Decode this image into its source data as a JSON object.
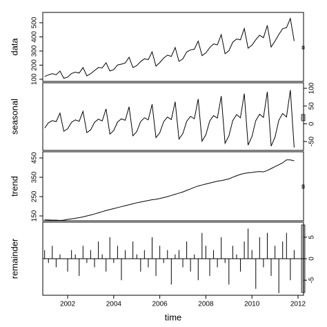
{
  "chart_data": {
    "type": "line",
    "xlabel": "time",
    "x": [
      2001,
      2001.167,
      2001.333,
      2001.5,
      2001.667,
      2001.833,
      2002,
      2002.167,
      2002.333,
      2002.5,
      2002.667,
      2002.833,
      2003,
      2003.167,
      2003.333,
      2003.5,
      2003.667,
      2003.833,
      2004,
      2004.167,
      2004.333,
      2004.5,
      2004.667,
      2004.833,
      2005,
      2005.167,
      2005.333,
      2005.5,
      2005.667,
      2005.833,
      2006,
      2006.167,
      2006.333,
      2006.5,
      2006.667,
      2006.833,
      2007,
      2007.167,
      2007.333,
      2007.5,
      2007.667,
      2007.833,
      2008,
      2008.167,
      2008.333,
      2008.5,
      2008.667,
      2008.833,
      2009,
      2009.167,
      2009.333,
      2009.5,
      2009.667,
      2009.833,
      2010,
      2010.167,
      2010.333,
      2010.5,
      2010.667,
      2010.833,
      2011,
      2011.167,
      2011.333,
      2011.5,
      2011.667,
      2011.833
    ],
    "xlim": [
      2000.92,
      2012.24
    ],
    "xticks": [
      2002,
      2004,
      2006,
      2008,
      2010,
      2012
    ],
    "panels": [
      {
        "type": "line",
        "ylabel": "data",
        "axis": "left",
        "ylim": [
          85,
          573
        ],
        "yticks": [
          100,
          200,
          300,
          400,
          500
        ],
        "values": [
          120,
          131,
          140,
          132,
          158,
          107,
          115,
          141,
          150,
          144,
          183,
          124,
          140,
          162,
          183,
          181,
          217,
          159,
          168,
          201,
          207,
          215,
          256,
          183,
          197,
          225,
          245,
          239,
          294,
          193,
          218,
          250,
          271,
          262,
          325,
          227,
          244,
          293,
          308,
          313,
          370,
          267,
          287,
          324,
          350,
          344,
          416,
          281,
          302,
          362,
          385,
          379,
          459,
          320,
          341,
          380,
          412,
          394,
          481,
          328,
          370,
          417,
          458,
          465,
          530,
          370
        ]
      },
      {
        "type": "line",
        "ylabel": "seasonal",
        "axis": "right",
        "ylim": [
          -75,
          115.6
        ],
        "yticks": [
          -50,
          0,
          50,
          100
        ],
        "values": [
          -12,
          3,
          9,
          6,
          30,
          -21,
          -14,
          4,
          11,
          7,
          35,
          -25,
          -17,
          4,
          13,
          8,
          42,
          -29,
          -19,
          5,
          14,
          10,
          48,
          -34,
          -22,
          6,
          17,
          11,
          55,
          -39,
          -25,
          6,
          19,
          12,
          62,
          -43,
          -28,
          7,
          21,
          14,
          70,
          -49,
          -31,
          8,
          23,
          16,
          78,
          -55,
          -34,
          9,
          26,
          17,
          85,
          -60,
          -36,
          9,
          27,
          18,
          90,
          -63,
          -38,
          10,
          29,
          19,
          95,
          -67
        ]
      },
      {
        "type": "line",
        "ylabel": "trend",
        "axis": "left",
        "ylim": [
          125,
          482
        ],
        "yticks": [
          150,
          250,
          350,
          450
        ],
        "values": [
          130,
          129,
          128,
          128,
          127,
          128,
          132,
          135,
          138,
          141,
          145,
          150,
          155,
          160,
          166,
          172,
          178,
          183,
          188,
          193,
          198,
          203,
          208,
          213,
          218,
          222,
          226,
          230,
          234,
          236,
          240,
          245,
          250,
          256,
          262,
          268,
          274,
          282,
          290,
          298,
          305,
          310,
          315,
          320,
          325,
          330,
          333,
          337,
          342,
          350,
          358,
          365,
          370,
          373,
          375,
          378,
          380,
          378,
          385,
          395,
          405,
          415,
          425,
          440,
          440,
          435
        ]
      },
      {
        "type": "bar",
        "ylabel": "remainder",
        "axis": "right",
        "ylim": [
          -8.5,
          8.5
        ],
        "yticks": [
          -5,
          0,
          5
        ],
        "values": [
          2,
          -1,
          3,
          -2,
          1,
          0,
          -3,
          2,
          1,
          -4,
          3,
          -1,
          2,
          -2,
          4,
          1,
          -3,
          5,
          -1,
          3,
          -5,
          2,
          0,
          4,
          1,
          -3,
          2,
          -2,
          5,
          -4,
          3,
          -1,
          2,
          -6,
          1,
          2,
          -2,
          4,
          -3,
          1,
          -5,
          6,
          3,
          -4,
          2,
          -2,
          5,
          -1,
          -6,
          3,
          1,
          -3,
          4,
          7,
          2,
          -7,
          5,
          -2,
          6,
          -4,
          3,
          -8,
          4,
          6,
          -5,
          2
        ]
      }
    ]
  }
}
